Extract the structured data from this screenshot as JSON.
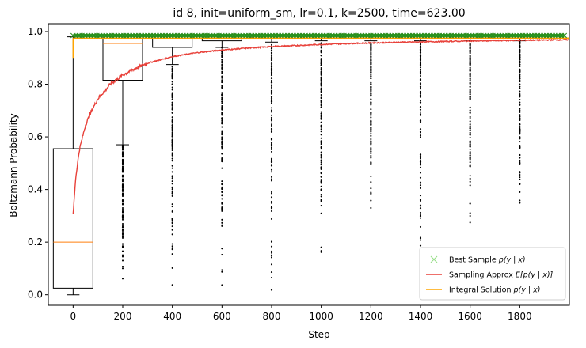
{
  "chart_data": {
    "type": "box",
    "title": "id 8, init=uniform_sm, lr=0.1, k=2500, time=623.00",
    "xlabel": "Step",
    "ylabel": "Boltzmann Probability",
    "xlim": [
      -100,
      2000
    ],
    "ylim": [
      -0.04,
      1.03
    ],
    "x_ticks": [
      0,
      200,
      400,
      600,
      800,
      1000,
      1200,
      1400,
      1600,
      1800
    ],
    "y_ticks": [
      0.0,
      0.2,
      0.4,
      0.6,
      0.8,
      1.0
    ],
    "grid": false,
    "legend_position": "lower-right",
    "colors": {
      "box": "#000000",
      "median": "#ff7f0e",
      "sampling": "#e8413a",
      "integral": "#ffa500",
      "best": "#2ca02c",
      "best_marker": "#98df8a"
    },
    "boxes": [
      {
        "step": 0,
        "q1": 0.025,
        "median": 0.2,
        "q3": 0.555,
        "whisker_low": 0.0,
        "whisker_high": 0.98
      },
      {
        "step": 200,
        "q1": 0.815,
        "median": 0.955,
        "q3": 0.985,
        "whisker_low": 0.57,
        "whisker_high": 0.985
      },
      {
        "step": 400,
        "q1": 0.94,
        "median": 0.975,
        "q3": 0.985,
        "whisker_low": 0.875,
        "whisker_high": 0.985
      },
      {
        "step": 600,
        "q1": 0.965,
        "median": 0.98,
        "q3": 0.985,
        "whisker_low": 0.94,
        "whisker_high": 0.985
      },
      {
        "step": 800,
        "q1": 0.975,
        "median": 0.98,
        "q3": 0.985,
        "whisker_low": 0.96,
        "whisker_high": 0.985
      },
      {
        "step": 1000,
        "q1": 0.975,
        "median": 0.98,
        "q3": 0.985,
        "whisker_low": 0.965,
        "whisker_high": 0.985
      },
      {
        "step": 1200,
        "q1": 0.975,
        "median": 0.98,
        "q3": 0.985,
        "whisker_low": 0.965,
        "whisker_high": 0.985
      },
      {
        "step": 1400,
        "q1": 0.975,
        "median": 0.98,
        "q3": 0.985,
        "whisker_low": 0.965,
        "whisker_high": 0.985
      },
      {
        "step": 1600,
        "q1": 0.975,
        "median": 0.98,
        "q3": 0.985,
        "whisker_low": 0.965,
        "whisker_high": 0.985
      },
      {
        "step": 1800,
        "q1": 0.975,
        "median": 0.98,
        "q3": 0.985,
        "whisker_low": 0.965,
        "whisker_high": 0.985
      }
    ],
    "outliers": [
      {
        "step": 200,
        "range": [
          0.0,
          0.57
        ]
      },
      {
        "step": 400,
        "range": [
          0.0,
          0.87
        ]
      },
      {
        "step": 600,
        "range": [
          0.02,
          0.94
        ]
      },
      {
        "step": 800,
        "range": [
          0.01,
          0.95
        ]
      },
      {
        "step": 1000,
        "range": [
          0.1,
          0.96
        ]
      },
      {
        "step": 1200,
        "range": [
          0.25,
          0.96
        ]
      },
      {
        "step": 1400,
        "range": [
          0.02,
          0.96
        ]
      },
      {
        "step": 1600,
        "range": [
          0.22,
          0.96
        ]
      },
      {
        "step": 1800,
        "range": [
          0.32,
          0.965
        ]
      }
    ],
    "series": [
      {
        "name": "Best Sample p(y | x)",
        "kind": "marker",
        "x": [
          0,
          2000
        ],
        "y": [
          0.985,
          0.985
        ]
      },
      {
        "name": "Sampling Approx E[p(y | x)]",
        "kind": "line",
        "x": [
          0,
          10,
          25,
          50,
          75,
          100,
          150,
          200,
          250,
          300,
          400,
          500,
          600,
          700,
          800,
          1000,
          1200,
          1400,
          1600,
          1800,
          2000
        ],
        "y": [
          0.305,
          0.44,
          0.55,
          0.645,
          0.7,
          0.745,
          0.8,
          0.835,
          0.86,
          0.88,
          0.905,
          0.92,
          0.93,
          0.937,
          0.943,
          0.951,
          0.957,
          0.961,
          0.964,
          0.967,
          0.969
        ]
      },
      {
        "name": "Integral Solution p(y | x)",
        "kind": "line",
        "x": [
          0,
          2000
        ],
        "y": [
          0.975,
          0.975
        ]
      }
    ],
    "legend": [
      {
        "label_pre": "Best Sample ",
        "label_math": "p(y | x)",
        "label_post": ""
      },
      {
        "label_pre": "Sampling Approx ",
        "label_math": "E[p(y | x)]",
        "label_post": ""
      },
      {
        "label_pre": "Integral Solution ",
        "label_math": "p(y | x)",
        "label_post": ""
      }
    ]
  }
}
